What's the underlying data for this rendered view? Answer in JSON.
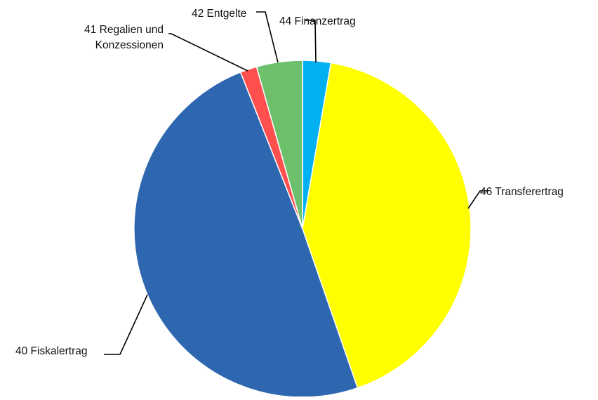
{
  "chart_data": {
    "type": "pie",
    "start_angle_deg": 0,
    "direction": "clockwise",
    "slices": [
      {
        "label": "44 Finanzertrag",
        "value": 2.7,
        "color": "#00B0F0"
      },
      {
        "label": "46 Transferertrag",
        "value": 42.0,
        "color": "#FFFF00"
      },
      {
        "label": "40 Fiskalertrag",
        "value": 49.3,
        "color": "#2E67AF"
      },
      {
        "label": "41 Regalien und Konzessionen",
        "label_lines": [
          "41 Regalien und",
          "Konzessionen"
        ],
        "value": 1.6,
        "color": "#FF4F4F"
      },
      {
        "label": "42 Entgelte",
        "value": 4.4,
        "color": "#6CC06C"
      }
    ]
  }
}
